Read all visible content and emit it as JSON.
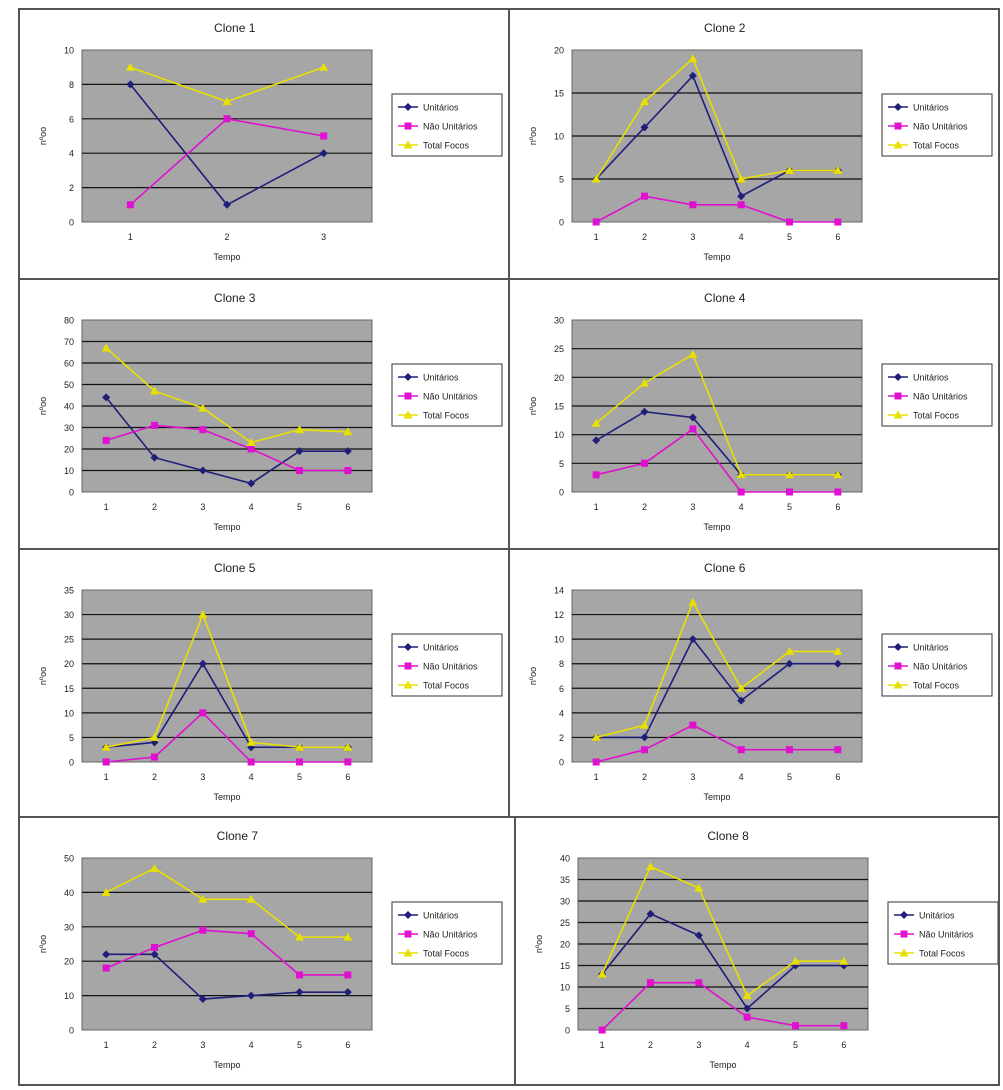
{
  "chart_data": [
    {
      "type": "line",
      "title": "Clone 1",
      "xlabel": "Tempo",
      "ylabel": "nºoo",
      "categories": [
        "1",
        "2",
        "3"
      ],
      "yticks": [
        "0",
        "2",
        "4",
        "6",
        "8",
        "10"
      ],
      "ylim": [
        0,
        10
      ],
      "legend": "right",
      "grid": true,
      "series": [
        {
          "name": "Unitários",
          "values": [
            8,
            1,
            4
          ]
        },
        {
          "name": "Não Unitários",
          "values": [
            1,
            6,
            5
          ]
        },
        {
          "name": "Total Focos",
          "values": [
            9,
            7,
            9
          ]
        }
      ]
    },
    {
      "type": "line",
      "title": "Clone 2",
      "xlabel": "Tempo",
      "ylabel": "nºoo",
      "categories": [
        "1",
        "2",
        "3",
        "4",
        "5",
        "6"
      ],
      "yticks": [
        "0",
        "5",
        "10",
        "15",
        "20"
      ],
      "ylim": [
        0,
        20
      ],
      "legend": "right",
      "grid": true,
      "series": [
        {
          "name": "Unitários",
          "values": [
            5,
            11,
            17,
            3,
            6,
            6
          ]
        },
        {
          "name": "Não Unitários",
          "values": [
            0,
            3,
            2,
            2,
            0,
            0
          ]
        },
        {
          "name": "Total Focos",
          "values": [
            5,
            14,
            19,
            5,
            6,
            6
          ]
        }
      ]
    },
    {
      "type": "line",
      "title": "Clone 3",
      "xlabel": "Tempo",
      "ylabel": "nºoo",
      "categories": [
        "1",
        "2",
        "3",
        "4",
        "5",
        "6"
      ],
      "yticks": [
        "0",
        "10",
        "20",
        "30",
        "40",
        "50",
        "60",
        "70",
        "80"
      ],
      "ylim": [
        0,
        80
      ],
      "legend": "right",
      "grid": true,
      "series": [
        {
          "name": "Unitários",
          "values": [
            44,
            16,
            10,
            4,
            19,
            19
          ]
        },
        {
          "name": "Não Unitários",
          "values": [
            24,
            31,
            29,
            20,
            10,
            10
          ]
        },
        {
          "name": "Total Focos",
          "values": [
            67,
            47,
            39,
            23,
            29,
            28
          ]
        }
      ]
    },
    {
      "type": "line",
      "title": "Clone 4",
      "xlabel": "Tempo",
      "ylabel": "nºoo",
      "categories": [
        "1",
        "2",
        "3",
        "4",
        "5",
        "6"
      ],
      "yticks": [
        "0",
        "5",
        "10",
        "15",
        "20",
        "25",
        "30"
      ],
      "ylim": [
        0,
        30
      ],
      "legend": "right",
      "grid": true,
      "series": [
        {
          "name": "Unitários",
          "values": [
            9,
            14,
            13,
            3,
            3,
            3
          ]
        },
        {
          "name": "Não Unitários",
          "values": [
            3,
            5,
            11,
            0,
            0,
            0
          ]
        },
        {
          "name": "Total Focos",
          "values": [
            12,
            19,
            24,
            3,
            3,
            3
          ]
        }
      ]
    },
    {
      "type": "line",
      "title": "Clone 5",
      "xlabel": "Tempo",
      "ylabel": "nºoo",
      "categories": [
        "1",
        "2",
        "3",
        "4",
        "5",
        "6"
      ],
      "yticks": [
        "0",
        "5",
        "10",
        "15",
        "20",
        "25",
        "30",
        "35"
      ],
      "ylim": [
        0,
        35
      ],
      "legend": "right",
      "grid": true,
      "series": [
        {
          "name": "Unitários",
          "values": [
            3,
            4,
            20,
            3,
            3,
            3
          ]
        },
        {
          "name": "Não Unitários",
          "values": [
            0,
            1,
            10,
            0,
            0,
            0
          ]
        },
        {
          "name": "Total Focos",
          "values": [
            3,
            5,
            30,
            4,
            3,
            3
          ]
        }
      ]
    },
    {
      "type": "line",
      "title": "Clone 6",
      "xlabel": "Tempo",
      "ylabel": "nºoo",
      "categories": [
        "1",
        "2",
        "3",
        "4",
        "5",
        "6"
      ],
      "yticks": [
        "0",
        "2",
        "4",
        "6",
        "8",
        "10",
        "12",
        "14"
      ],
      "ylim": [
        0,
        14
      ],
      "legend": "right",
      "grid": true,
      "series": [
        {
          "name": "Unitários",
          "values": [
            2,
            2,
            10,
            5,
            8,
            8
          ]
        },
        {
          "name": "Não Unitários",
          "values": [
            0,
            1,
            3,
            1,
            1,
            1
          ]
        },
        {
          "name": "Total Focos",
          "values": [
            2,
            3,
            13,
            6,
            9,
            9
          ]
        }
      ]
    },
    {
      "type": "line",
      "title": "Clone 7",
      "xlabel": "Tempo",
      "ylabel": "nºoo",
      "categories": [
        "1",
        "2",
        "3",
        "4",
        "5",
        "6"
      ],
      "yticks": [
        "0",
        "10",
        "20",
        "30",
        "40",
        "50"
      ],
      "ylim": [
        0,
        50
      ],
      "legend": "right",
      "grid": true,
      "series": [
        {
          "name": "Unitários",
          "values": [
            22,
            22,
            9,
            10,
            11,
            11
          ]
        },
        {
          "name": "Não Unitários",
          "values": [
            18,
            24,
            29,
            28,
            16,
            16
          ]
        },
        {
          "name": "Total Focos",
          "values": [
            40,
            47,
            38,
            38,
            27,
            27
          ]
        }
      ]
    },
    {
      "type": "line",
      "title": "Clone 8",
      "xlabel": "Tempo",
      "ylabel": "nºoo",
      "categories": [
        "1",
        "2",
        "3",
        "4",
        "5",
        "6"
      ],
      "yticks": [
        "0",
        "5",
        "10",
        "15",
        "20",
        "25",
        "30",
        "35",
        "40"
      ],
      "ylim": [
        0,
        40
      ],
      "legend": "right",
      "grid": true,
      "series": [
        {
          "name": "Unitários",
          "values": [
            13,
            27,
            22,
            5,
            15,
            15
          ]
        },
        {
          "name": "Não Unitários",
          "values": [
            0,
            11,
            11,
            3,
            1,
            1
          ]
        },
        {
          "name": "Total Focos",
          "values": [
            13,
            38,
            33,
            8,
            16,
            16
          ]
        }
      ]
    }
  ],
  "colors": {
    "Unitários": "#1f1f7a",
    "Não Unitários": "#e010d0",
    "Total Focos": "#e8e000",
    "plot_bg": "#a6a6a6",
    "gridline": "#111111"
  }
}
